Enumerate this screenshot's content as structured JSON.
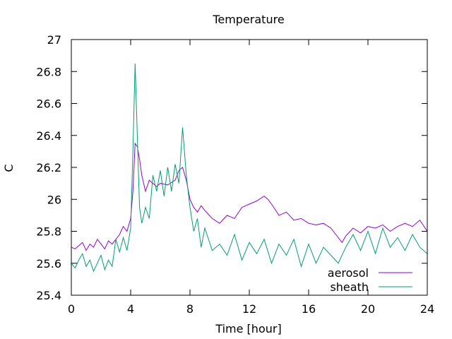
{
  "chart_data": {
    "type": "line",
    "title": "Temperature",
    "xlabel": "Time [hour]",
    "ylabel": "C",
    "xlim": [
      0,
      24
    ],
    "ylim": [
      25.4,
      27
    ],
    "xticks": [
      0,
      4,
      8,
      12,
      16,
      20,
      24
    ],
    "yticks": [
      25.4,
      25.6,
      25.8,
      26,
      26.2,
      26.4,
      26.6,
      26.8,
      27
    ],
    "xtick_labels": [
      "0",
      "4",
      "8",
      "12",
      "16",
      "20",
      "24"
    ],
    "ytick_labels": [
      "25.4",
      "25.6",
      "25.8",
      "26",
      "26.2",
      "26.4",
      "26.6",
      "26.8",
      "27"
    ],
    "grid": false,
    "legend_position": "bottom-right",
    "series": [
      {
        "name": "aerosol",
        "color": "#9400d3",
        "x": [
          0,
          0.25,
          0.5,
          0.75,
          1.0,
          1.25,
          1.5,
          1.75,
          2.0,
          2.25,
          2.5,
          2.75,
          3.0,
          3.25,
          3.5,
          3.75,
          4.0,
          4.15,
          4.3,
          4.45,
          4.6,
          4.75,
          5.0,
          5.25,
          5.5,
          5.75,
          6.0,
          6.5,
          7.0,
          7.25,
          7.5,
          7.75,
          8.0,
          8.25,
          8.5,
          8.75,
          9.0,
          9.5,
          10.0,
          10.5,
          11.0,
          11.5,
          12.0,
          12.5,
          13.0,
          13.25,
          13.5,
          14.0,
          14.5,
          15.0,
          15.5,
          16.0,
          16.5,
          17.0,
          17.5,
          18.0,
          18.25,
          18.5,
          19.0,
          19.5,
          20.0,
          20.5,
          21.0,
          21.5,
          22.0,
          22.5,
          23.0,
          23.5,
          24.0
        ],
        "values": [
          25.7,
          25.69,
          25.71,
          25.73,
          25.68,
          25.72,
          25.7,
          25.75,
          25.72,
          25.69,
          25.74,
          25.72,
          25.75,
          25.78,
          25.83,
          25.8,
          25.88,
          26.05,
          26.35,
          26.33,
          26.25,
          26.15,
          26.05,
          26.12,
          26.1,
          26.08,
          26.1,
          26.09,
          26.12,
          26.18,
          26.2,
          26.12,
          26.0,
          25.95,
          25.92,
          25.96,
          25.93,
          25.88,
          25.85,
          25.9,
          25.88,
          25.95,
          25.97,
          25.99,
          26.02,
          26.0,
          25.97,
          25.9,
          25.92,
          25.87,
          25.88,
          25.85,
          25.84,
          25.85,
          25.82,
          25.76,
          25.73,
          25.77,
          25.82,
          25.79,
          25.83,
          25.82,
          25.84,
          25.8,
          25.83,
          25.85,
          25.83,
          25.87,
          25.8
        ]
      },
      {
        "name": "sheath",
        "color": "#009e73",
        "x": [
          0,
          0.25,
          0.5,
          0.75,
          1.0,
          1.25,
          1.5,
          1.75,
          2.0,
          2.25,
          2.5,
          2.75,
          3.0,
          3.25,
          3.5,
          3.75,
          4.0,
          4.15,
          4.3,
          4.45,
          4.6,
          4.75,
          5.0,
          5.25,
          5.5,
          5.75,
          6.0,
          6.25,
          6.5,
          6.75,
          7.0,
          7.25,
          7.5,
          7.75,
          8.0,
          8.25,
          8.5,
          8.75,
          9.0,
          9.5,
          10.0,
          10.5,
          11.0,
          11.5,
          12.0,
          12.5,
          13.0,
          13.5,
          14.0,
          14.5,
          15.0,
          15.5,
          16.0,
          16.5,
          17.0,
          17.5,
          18.0,
          18.5,
          19.0,
          19.5,
          20.0,
          20.5,
          21.0,
          21.5,
          22.0,
          22.5,
          23.0,
          23.5,
          24.0
        ],
        "values": [
          25.6,
          25.57,
          25.62,
          25.66,
          25.58,
          25.62,
          25.55,
          25.6,
          25.65,
          25.56,
          25.62,
          25.58,
          25.75,
          25.67,
          25.76,
          25.68,
          25.82,
          26.3,
          26.85,
          26.4,
          25.95,
          25.85,
          25.95,
          25.88,
          26.15,
          26.05,
          26.18,
          26.02,
          26.2,
          26.05,
          26.22,
          26.1,
          26.45,
          26.15,
          25.95,
          25.8,
          25.88,
          25.7,
          25.82,
          25.68,
          25.72,
          25.65,
          25.78,
          25.62,
          25.73,
          25.66,
          25.75,
          25.6,
          25.72,
          25.65,
          25.75,
          25.58,
          25.72,
          25.6,
          25.7,
          25.65,
          25.6,
          25.7,
          25.78,
          25.68,
          25.8,
          25.66,
          25.82,
          25.7,
          25.76,
          25.68,
          25.78,
          25.7,
          25.66
        ]
      }
    ]
  }
}
